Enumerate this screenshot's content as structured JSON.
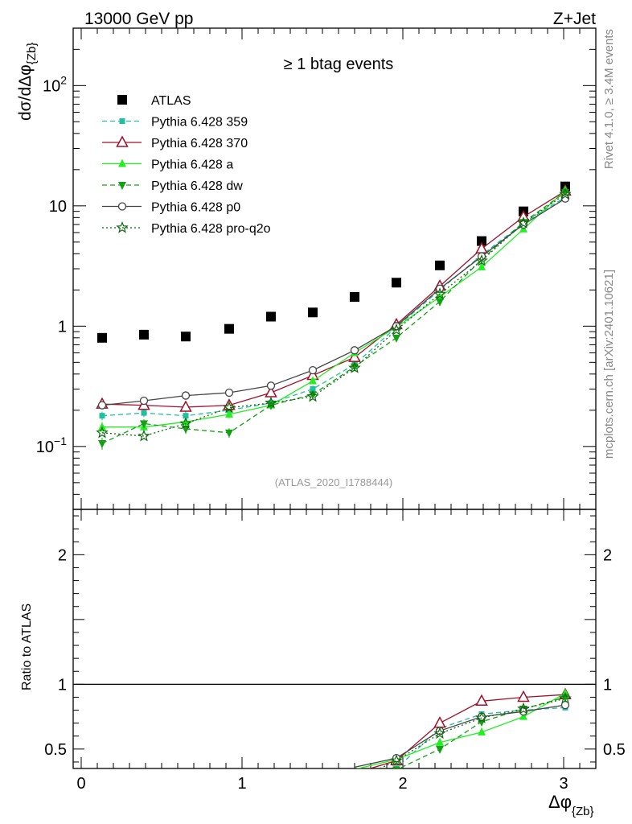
{
  "header": {
    "left_label": "13000 GeV pp",
    "right_label": "Z+Jet",
    "subtitle": "≥ 1 btag events",
    "watermark": "(ATLAS_2020_I1788444)",
    "side_label_top": "Rivet 4.1.0, ≥ 3.4M events",
    "side_label_bottom": "mcplots.cern.ch [arXiv:2401.10621]"
  },
  "chart_data": {
    "type": "scatter",
    "title": "≥ 1 btag events",
    "xlabel": "Δφ{Zb}",
    "ylabel": "dσ/dΔφ{Zb}",
    "ratio_ylabel": "Ratio to ATLAS",
    "xlim": [
      -0.05,
      3.2
    ],
    "ylim": [
      0.03,
      300
    ],
    "ratio_ylim": [
      0.35,
      2.35
    ],
    "yscale": "log",
    "x_ticks": [
      0,
      1,
      2,
      3
    ],
    "y_ticks": [
      {
        "value": 100,
        "base": "10",
        "exp": "2"
      },
      {
        "value": 10,
        "base": "10",
        "exp": ""
      },
      {
        "value": 1,
        "base": "1",
        "exp": ""
      },
      {
        "value": 0.1,
        "base": "10",
        "exp": "−1"
      }
    ],
    "ratio_ticks": [
      {
        "value": 2,
        "label": "2"
      },
      {
        "value": 1,
        "label": "1"
      },
      {
        "value": 0.5,
        "label": "0.5"
      }
    ],
    "x": [
      0.13,
      0.39,
      0.65,
      0.92,
      1.18,
      1.44,
      1.7,
      1.96,
      2.23,
      2.49,
      2.75,
      3.01
    ],
    "series": [
      {
        "name": "ATLAS",
        "color": "#000000",
        "marker": "square",
        "dash": "",
        "values": [
          0.8,
          0.85,
          0.82,
          0.95,
          1.2,
          1.3,
          1.75,
          2.3,
          3.2,
          5.1,
          9.0,
          14.5
        ]
      },
      {
        "name": "Pythia 6.428 359",
        "color": "#1fbf9f",
        "marker": "smallsquare",
        "dash": "6,4",
        "values": [
          0.18,
          0.19,
          0.18,
          0.2,
          0.23,
          0.3,
          0.48,
          0.98,
          2.0,
          3.9,
          7.2,
          11.8
        ],
        "errors": [
          0.015,
          0.015,
          0.015,
          0.015,
          0.018,
          0.02,
          0.03,
          0.05,
          0.08,
          0.12,
          0.2,
          0.3
        ]
      },
      {
        "name": "Pythia 6.428 370",
        "color": "#a0102a",
        "marker": "open-triangle",
        "dash": "",
        "values": [
          0.225,
          0.22,
          0.212,
          0.22,
          0.28,
          0.39,
          0.55,
          1.03,
          2.15,
          4.4,
          8.1,
          13.3
        ]
      },
      {
        "name": "Pythia 6.428 a",
        "color": "#22ee22",
        "marker": "triangle",
        "dash": "",
        "values": [
          0.145,
          0.145,
          0.16,
          0.185,
          0.22,
          0.35,
          0.6,
          0.98,
          1.75,
          3.1,
          6.4,
          13.5
        ],
        "errors": [
          0.015,
          0.015,
          0.015,
          0.015,
          0.018,
          0.02,
          0.03,
          0.05,
          0.08,
          0.12,
          0.2,
          0.3
        ]
      },
      {
        "name": "Pythia 6.428 dw",
        "color": "#14a014",
        "marker": "down-triangle",
        "dash": "6,4",
        "values": [
          0.106,
          0.155,
          0.14,
          0.13,
          0.22,
          0.27,
          0.46,
          0.8,
          1.6,
          3.6,
          7.3,
          13.0
        ],
        "errors": [
          0.012,
          0.013,
          0.013,
          0.012,
          0.018,
          0.02,
          0.03,
          0.05,
          0.08,
          0.12,
          0.2,
          0.3
        ]
      },
      {
        "name": "Pythia 6.428 p0",
        "color": "#444444",
        "marker": "open-circle",
        "dash": "",
        "values": [
          0.22,
          0.24,
          0.265,
          0.28,
          0.32,
          0.43,
          0.63,
          1.0,
          2.05,
          3.8,
          7.0,
          11.5
        ]
      },
      {
        "name": "Pythia 6.428 pro-q2o",
        "color": "#0f6a0f",
        "marker": "star",
        "dash": "2,3",
        "values": [
          0.13,
          0.122,
          0.155,
          0.21,
          0.23,
          0.26,
          0.45,
          0.93,
          1.85,
          3.5,
          7.2,
          12.5
        ]
      }
    ],
    "ratio_series": [
      {
        "name": "Pythia 6.428 359",
        "values": [
          null,
          null,
          null,
          null,
          null,
          null,
          null,
          0.35,
          0.66,
          0.77,
          0.8,
          0.82
        ]
      },
      {
        "name": "Pythia 6.428 370",
        "values": [
          null,
          null,
          null,
          null,
          null,
          null,
          null,
          0.41,
          0.7,
          0.87,
          0.9,
          0.92
        ]
      },
      {
        "name": "Pythia 6.428 a",
        "values": [
          null,
          null,
          null,
          null,
          null,
          null,
          null,
          0.42,
          0.55,
          0.63,
          0.75,
          0.93
        ]
      },
      {
        "name": "Pythia 6.428 dw",
        "values": [
          null,
          null,
          null,
          null,
          null,
          null,
          null,
          0.34,
          0.5,
          0.71,
          0.81,
          0.9
        ]
      },
      {
        "name": "Pythia 6.428 p0",
        "values": [
          null,
          null,
          null,
          null,
          null,
          null,
          null,
          0.43,
          0.64,
          0.75,
          0.79,
          0.84
        ]
      },
      {
        "name": "Pythia 6.428 pro-q2o",
        "values": [
          null,
          null,
          null,
          null,
          null,
          null,
          null,
          0.41,
          0.62,
          0.74,
          0.81,
          0.89
        ]
      }
    ]
  }
}
